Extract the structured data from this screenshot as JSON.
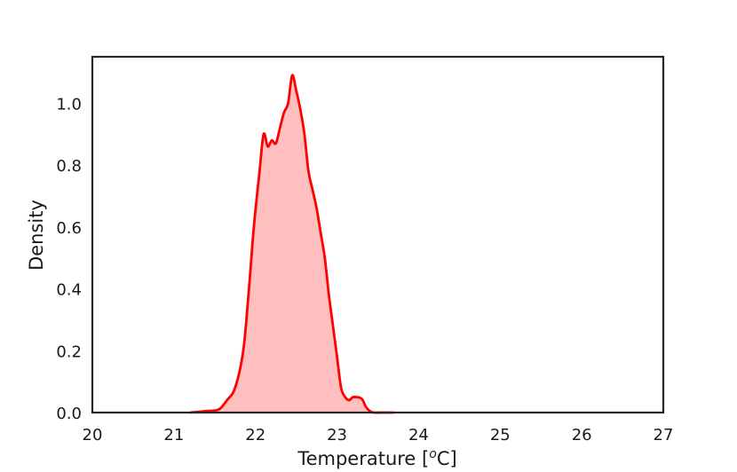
{
  "chart_data": {
    "type": "area",
    "title": "",
    "xlabel": "Temperature [",
    "xlabel_sup": "o",
    "xlabel_tail": "C]",
    "ylabel": "Density",
    "xlim": [
      20,
      27
    ],
    "ylim": [
      0,
      1.15
    ],
    "xticks": [
      "20",
      "21",
      "22",
      "23",
      "24",
      "25",
      "26",
      "27"
    ],
    "yticks": [
      "0.0",
      "0.2",
      "0.4",
      "0.6",
      "0.8",
      "1.0"
    ],
    "grid": false,
    "legend": "none",
    "series": [
      {
        "color": "#ff0000",
        "fill_color": "#ffbfbf",
        "x": [
          21.2,
          21.4,
          21.55,
          21.65,
          21.75,
          21.85,
          21.92,
          21.98,
          22.05,
          22.1,
          22.15,
          22.2,
          22.25,
          22.3,
          22.35,
          22.4,
          22.45,
          22.5,
          22.55,
          22.6,
          22.65,
          22.7,
          22.75,
          22.8,
          22.85,
          22.9,
          22.95,
          23.0,
          23.05,
          23.1,
          23.15,
          23.2,
          23.3,
          23.35,
          23.4,
          23.45,
          23.55,
          23.7
        ],
        "y": [
          0.0,
          0.005,
          0.01,
          0.04,
          0.08,
          0.2,
          0.4,
          0.6,
          0.78,
          0.9,
          0.86,
          0.88,
          0.87,
          0.92,
          0.97,
          1.0,
          1.09,
          1.04,
          0.98,
          0.9,
          0.78,
          0.72,
          0.66,
          0.58,
          0.5,
          0.38,
          0.28,
          0.18,
          0.08,
          0.05,
          0.04,
          0.05,
          0.045,
          0.02,
          0.005,
          0.0,
          0.0,
          0.0
        ]
      }
    ]
  }
}
